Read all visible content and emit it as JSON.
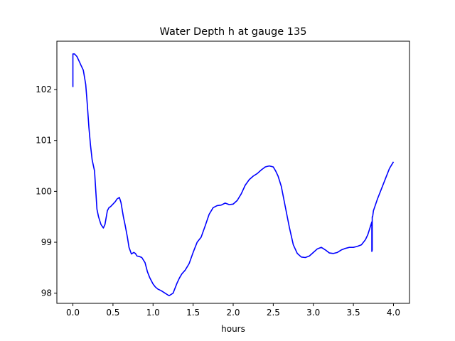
{
  "chart_data": {
    "type": "line",
    "title": "Water Depth h at gauge 135",
    "xlabel": "hours",
    "ylabel": "",
    "xlim": [
      -0.2,
      4.2
    ],
    "ylim": [
      97.8,
      102.95
    ],
    "xticks": [
      0.0,
      0.5,
      1.0,
      1.5,
      2.0,
      2.5,
      3.0,
      3.5,
      4.0
    ],
    "xtick_labels": [
      "0.0",
      "0.5",
      "1.0",
      "1.5",
      "2.0",
      "2.5",
      "3.0",
      "3.5",
      "4.0"
    ],
    "yticks": [
      98,
      99,
      100,
      101,
      102
    ],
    "ytick_labels": [
      "98",
      "99",
      "100",
      "101",
      "102"
    ],
    "grid": false,
    "legend": "none",
    "series": [
      {
        "color": "#0000ff",
        "x": [
          0.0,
          0.0,
          0.02,
          0.05,
          0.08,
          0.1,
          0.13,
          0.16,
          0.18,
          0.2,
          0.22,
          0.24,
          0.27,
          0.3,
          0.32,
          0.35,
          0.38,
          0.4,
          0.43,
          0.45,
          0.47,
          0.5,
          0.53,
          0.55,
          0.58,
          0.6,
          0.63,
          0.65,
          0.68,
          0.7,
          0.73,
          0.76,
          0.78,
          0.8,
          0.83,
          0.86,
          0.9,
          0.93,
          0.96,
          1.0,
          1.03,
          1.06,
          1.1,
          1.15,
          1.2,
          1.25,
          1.3,
          1.33,
          1.36,
          1.4,
          1.45,
          1.5,
          1.55,
          1.6,
          1.65,
          1.7,
          1.75,
          1.8,
          1.85,
          1.9,
          1.95,
          2.0,
          2.05,
          2.1,
          2.15,
          2.2,
          2.25,
          2.3,
          2.35,
          2.4,
          2.45,
          2.5,
          2.53,
          2.56,
          2.6,
          2.65,
          2.7,
          2.75,
          2.8,
          2.85,
          2.9,
          2.95,
          3.0,
          3.05,
          3.1,
          3.15,
          3.2,
          3.25,
          3.3,
          3.35,
          3.4,
          3.45,
          3.5,
          3.55,
          3.6,
          3.65,
          3.68,
          3.7,
          3.73,
          3.73,
          3.735,
          3.735,
          3.74,
          3.75,
          3.8,
          3.85,
          3.9,
          3.95,
          4.0
        ],
        "y": [
          102.05,
          102.7,
          102.7,
          102.65,
          102.55,
          102.48,
          102.38,
          102.1,
          101.7,
          101.25,
          100.9,
          100.62,
          100.4,
          99.65,
          99.5,
          99.35,
          99.28,
          99.35,
          99.62,
          99.68,
          99.7,
          99.75,
          99.8,
          99.85,
          99.88,
          99.78,
          99.5,
          99.35,
          99.1,
          98.9,
          98.77,
          98.8,
          98.78,
          98.73,
          98.72,
          98.7,
          98.6,
          98.42,
          98.3,
          98.18,
          98.12,
          98.08,
          98.05,
          98.0,
          97.95,
          98.0,
          98.2,
          98.3,
          98.38,
          98.45,
          98.58,
          98.8,
          99.0,
          99.1,
          99.32,
          99.55,
          99.68,
          99.72,
          99.73,
          99.77,
          99.74,
          99.75,
          99.82,
          99.95,
          100.12,
          100.23,
          100.3,
          100.35,
          100.42,
          100.48,
          100.5,
          100.48,
          100.4,
          100.3,
          100.1,
          99.7,
          99.3,
          98.95,
          98.78,
          98.71,
          98.7,
          98.73,
          98.8,
          98.87,
          98.9,
          98.85,
          98.79,
          98.78,
          98.8,
          98.85,
          98.88,
          98.9,
          98.9,
          98.92,
          98.95,
          99.05,
          99.15,
          99.25,
          99.4,
          98.82,
          98.85,
          99.5,
          99.5,
          99.62,
          99.85,
          100.05,
          100.25,
          100.45,
          100.58
        ]
      }
    ]
  }
}
